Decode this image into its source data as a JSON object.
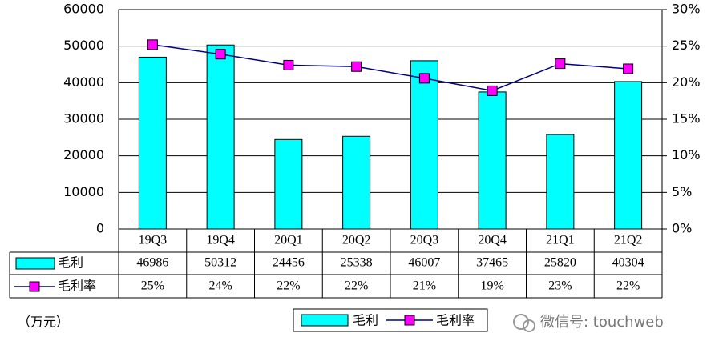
{
  "chart_data": {
    "type": "bar",
    "categories": [
      "19Q3",
      "19Q4",
      "20Q1",
      "20Q2",
      "20Q3",
      "20Q4",
      "21Q1",
      "21Q2"
    ],
    "series": [
      {
        "name": "毛利",
        "type": "bar",
        "color": "#00ffff",
        "values": [
          46986,
          50312,
          24456,
          25338,
          46007,
          37465,
          25820,
          40304
        ]
      },
      {
        "name": "毛利率",
        "type": "line",
        "axis": "y2",
        "color": "#000080",
        "marker_color": "#ff00ff",
        "values": [
          25.2,
          23.9,
          22.4,
          22.2,
          20.6,
          18.9,
          22.6,
          21.9
        ],
        "value_labels": [
          "25%",
          "24%",
          "22%",
          "22%",
          "21%",
          "19%",
          "23%",
          "22%"
        ]
      }
    ],
    "ylim": [
      0,
      60000
    ],
    "yticks": [
      0,
      10000,
      20000,
      30000,
      40000,
      50000,
      60000
    ],
    "y2lim": [
      0,
      30
    ],
    "y2ticks": [
      {
        "value": 0,
        "label": "0%"
      },
      {
        "value": 5,
        "label": "5%"
      },
      {
        "value": 10,
        "label": "10%"
      },
      {
        "value": 15,
        "label": "15%"
      },
      {
        "value": 20,
        "label": "20%"
      },
      {
        "value": 25,
        "label": "25%"
      },
      {
        "value": 30,
        "label": "30%"
      }
    ],
    "grid": true,
    "unit_label": "（万元）",
    "watermark": "微信号: touchweb"
  }
}
